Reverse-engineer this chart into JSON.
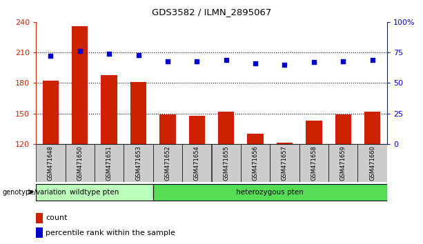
{
  "title": "GDS3582 / ILMN_2895067",
  "samples": [
    "GSM471648",
    "GSM471650",
    "GSM471651",
    "GSM471653",
    "GSM471652",
    "GSM471654",
    "GSM471655",
    "GSM471656",
    "GSM471657",
    "GSM471658",
    "GSM471659",
    "GSM471660"
  ],
  "counts": [
    182,
    236,
    188,
    181,
    149,
    148,
    152,
    130,
    121,
    143,
    149,
    152
  ],
  "percentile_ranks": [
    72,
    76,
    74,
    73,
    68,
    68,
    69,
    66,
    65,
    67,
    68,
    69
  ],
  "ylim_left": [
    120,
    240
  ],
  "ylim_right": [
    0,
    100
  ],
  "yticks_left": [
    120,
    150,
    180,
    210,
    240
  ],
  "yticks_right": [
    0,
    25,
    50,
    75,
    100
  ],
  "bar_color": "#cc2200",
  "dot_color": "#0000cc",
  "wildtype_count": 4,
  "heterozygous_count": 8,
  "wildtype_label": "wildtype pten",
  "heterozygous_label": "heterozygous pten",
  "wildtype_color": "#bbffbb",
  "heterozygous_color": "#55dd55",
  "group_label": "genotype/variation",
  "legend_count_label": "count",
  "legend_percentile_label": "percentile rank within the sample",
  "tick_label_color_left": "#cc2200",
  "tick_label_color_right": "#0000cc",
  "sample_bg_color": "#cccccc",
  "bar_width": 0.55,
  "dot_size": 25,
  "right_tick_labels": [
    "0",
    "25",
    "50",
    "75",
    "100%"
  ]
}
